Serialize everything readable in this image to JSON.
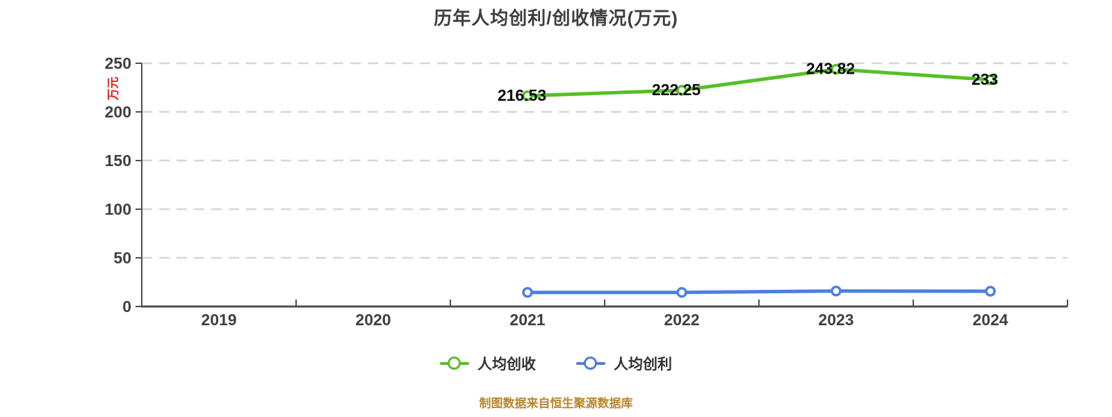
{
  "title": "历年人均创利/创收情况(万元)",
  "footer": "制图数据来自恒生聚源数据库",
  "chart_data": {
    "type": "line",
    "title": "历年人均创利/创收情况(万元)",
    "categories": [
      "2019",
      "2020",
      "2021",
      "2022",
      "2023",
      "2024"
    ],
    "series": [
      {
        "name": "人均创收",
        "color": "#55bf26",
        "values": [
          null,
          null,
          216.53,
          222.25,
          243.82,
          233
        ],
        "labels": [
          null,
          null,
          "216.53",
          "222.25",
          "243.82",
          "233"
        ]
      },
      {
        "name": "人均创利",
        "color": "#4d7ee0",
        "values": [
          null,
          null,
          14.5,
          14.5,
          15.9,
          15.7
        ],
        "labels": [
          null,
          null,
          null,
          null,
          null,
          null
        ]
      }
    ],
    "xlabel": "",
    "ylabel": "万元",
    "ylim": [
      0,
      250
    ],
    "yticks": [
      0,
      50,
      100,
      150,
      200,
      250
    ],
    "grid": "horizontal-dashed",
    "legend_position": "bottom"
  },
  "styles": {
    "background": "#ffffff",
    "title_color": "#3d3d3d",
    "axis_color": "#4d4d4d",
    "grid_color": "#d6d6d6",
    "tick_label_color": "#404040",
    "data_label_color": "#0a0a0a",
    "ylabel_color": "#e02222",
    "legend_text_color": "#333333",
    "footer_color": "#b8862d"
  }
}
